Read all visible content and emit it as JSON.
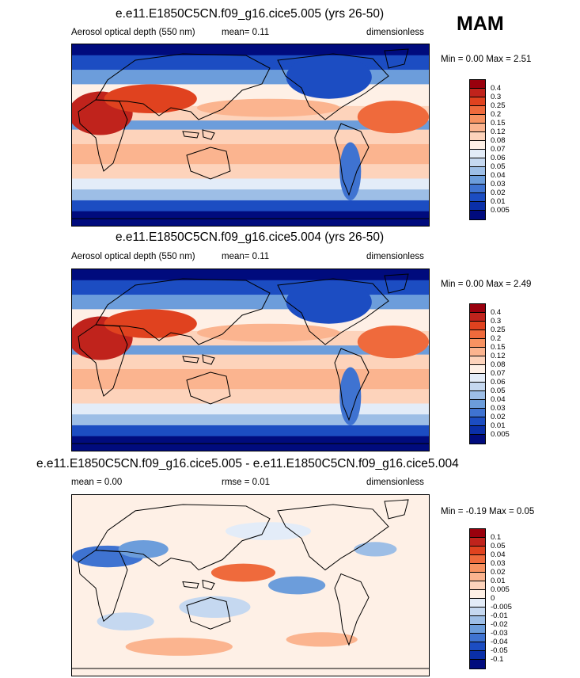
{
  "season": "MAM",
  "panels": [
    {
      "title": "e.e11.E1850C5CN.f09_g16.cice5.005 (yrs 26-50)",
      "left_label": "Aerosol optical depth (550 nm)",
      "mid_label": "mean=   0.11",
      "right_label": "dimensionless",
      "minmax": "Min =   0.00 Max =   2.51",
      "map_theme": "abs",
      "colorbar": {
        "labels": [
          "0.4",
          "0.3",
          "0.25",
          "0.2",
          "0.15",
          "0.12",
          "0.08",
          "0.07",
          "0.06",
          "0.05",
          "0.04",
          "0.03",
          "0.02",
          "0.01",
          "0.005"
        ],
        "colors": [
          "#99000d",
          "#c0231c",
          "#e0421f",
          "#ef6a3c",
          "#f79261",
          "#fbb48f",
          "#fdd3bb",
          "#fef0e6",
          "#e3ecf8",
          "#c5d8f0",
          "#9dbee6",
          "#6c9ddb",
          "#3f73d1",
          "#1c4dc2",
          "#0a2fa8",
          "#000b7d"
        ]
      }
    },
    {
      "title": "e.e11.E1850C5CN.f09_g16.cice5.004 (yrs 26-50)",
      "left_label": "Aerosol optical depth (550 nm)",
      "mid_label": "mean=   0.11",
      "right_label": "dimensionless",
      "minmax": "Min =   0.00 Max =   2.49",
      "map_theme": "abs",
      "colorbar": {
        "labels": [
          "0.4",
          "0.3",
          "0.25",
          "0.2",
          "0.15",
          "0.12",
          "0.08",
          "0.07",
          "0.06",
          "0.05",
          "0.04",
          "0.03",
          "0.02",
          "0.01",
          "0.005"
        ],
        "colors": [
          "#99000d",
          "#c0231c",
          "#e0421f",
          "#ef6a3c",
          "#f79261",
          "#fbb48f",
          "#fdd3bb",
          "#fef0e6",
          "#e3ecf8",
          "#c5d8f0",
          "#9dbee6",
          "#6c9ddb",
          "#3f73d1",
          "#1c4dc2",
          "#0a2fa8",
          "#000b7d"
        ]
      }
    },
    {
      "title": "e.e11.E1850C5CN.f09_g16.cice5.005 - e.e11.E1850C5CN.f09_g16.cice5.004",
      "left_label": "mean =   0.00",
      "mid_label": "rmse =   0.01",
      "right_label": "dimensionless",
      "minmax": "Min =  -0.19 Max =   0.05",
      "map_theme": "diff",
      "colorbar": {
        "labels": [
          "0.1",
          "0.05",
          "0.04",
          "0.03",
          "0.02",
          "0.01",
          "0.005",
          "0",
          "-0.005",
          "-0.01",
          "-0.02",
          "-0.03",
          "-0.04",
          "-0.05",
          "-0.1"
        ],
        "colors": [
          "#99000d",
          "#c0231c",
          "#e0421f",
          "#ef6a3c",
          "#f79261",
          "#fbb48f",
          "#fdd3bb",
          "#fef0e6",
          "#e3ecf8",
          "#c5d8f0",
          "#9dbee6",
          "#6c9ddb",
          "#3f73d1",
          "#1c4dc2",
          "#0a2fa8",
          "#000b7d"
        ]
      }
    }
  ],
  "chart_data": [
    {
      "type": "heatmap",
      "title": "e.e11.E1850C5CN.f09_g16.cice5.005 (yrs 26-50)",
      "variable": "Aerosol optical depth (550 nm)",
      "units": "dimensionless",
      "mean": 0.11,
      "min": 0.0,
      "max": 2.51,
      "contour_levels": [
        0.005,
        0.01,
        0.02,
        0.03,
        0.04,
        0.05,
        0.06,
        0.07,
        0.08,
        0.12,
        0.15,
        0.2,
        0.25,
        0.3,
        0.4
      ]
    },
    {
      "type": "heatmap",
      "title": "e.e11.E1850C5CN.f09_g16.cice5.004 (yrs 26-50)",
      "variable": "Aerosol optical depth (550 nm)",
      "units": "dimensionless",
      "mean": 0.11,
      "min": 0.0,
      "max": 2.49,
      "contour_levels": [
        0.005,
        0.01,
        0.02,
        0.03,
        0.04,
        0.05,
        0.06,
        0.07,
        0.08,
        0.12,
        0.15,
        0.2,
        0.25,
        0.3,
        0.4
      ]
    },
    {
      "type": "heatmap",
      "title": "e.e11.E1850C5CN.f09_g16.cice5.005 - e.e11.E1850C5CN.f09_g16.cice5.004",
      "units": "dimensionless",
      "mean": 0.0,
      "rmse": 0.01,
      "min": -0.19,
      "max": 0.05,
      "contour_levels": [
        -0.1,
        -0.05,
        -0.04,
        -0.03,
        -0.02,
        -0.01,
        -0.005,
        0,
        0.005,
        0.01,
        0.02,
        0.03,
        0.04,
        0.05,
        0.1
      ]
    }
  ]
}
